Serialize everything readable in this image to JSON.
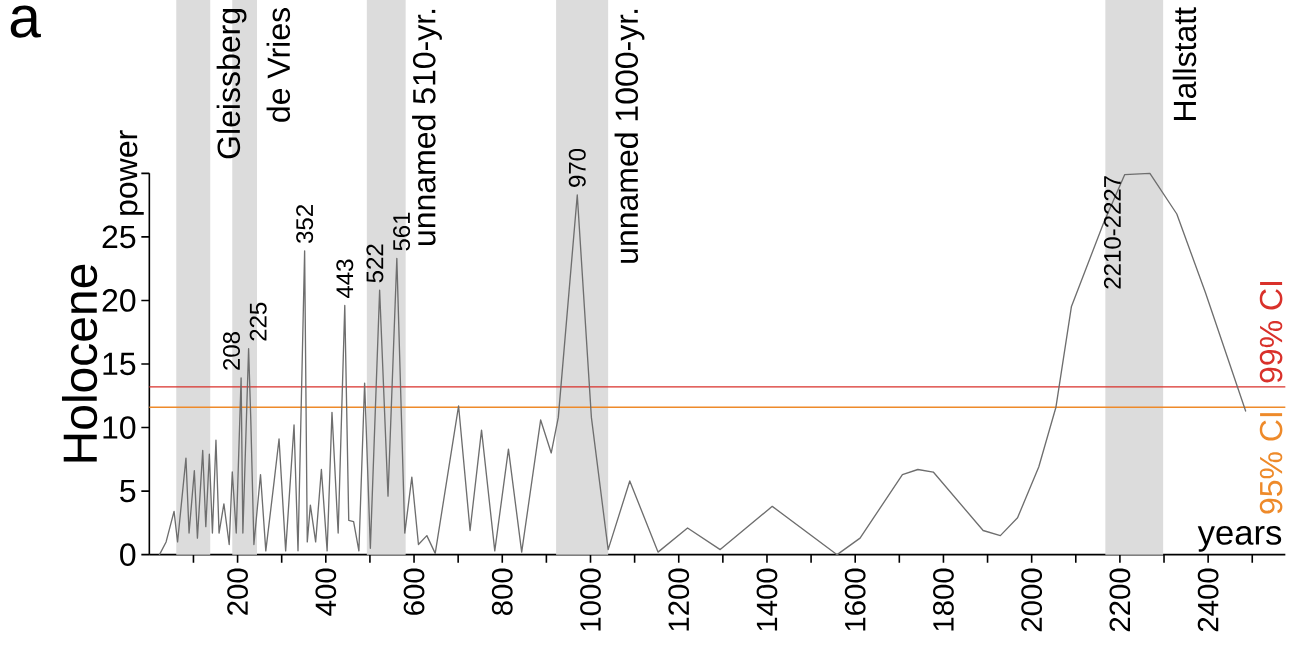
{
  "chart_data": {
    "type": "line",
    "ylabel": "Holocene",
    "xlabel": "years",
    "x": [
      23,
      38,
      56,
      64,
      83,
      90,
      102,
      109,
      121,
      128,
      136,
      143,
      151,
      158,
      169,
      181,
      188,
      197,
      208,
      212,
      225,
      230,
      237,
      252,
      264,
      283,
      294,
      309,
      328,
      337,
      352,
      358,
      365,
      377,
      390,
      403,
      414,
      428,
      443,
      452,
      463,
      475,
      488,
      501,
      522,
      541,
      561,
      579,
      595,
      610,
      629,
      648,
      701,
      727,
      753,
      783,
      814,
      844,
      887,
      911,
      927,
      970,
      1002,
      1040,
      1089,
      1153,
      1220,
      1294,
      1412,
      1559,
      1611,
      1707,
      1742,
      1777,
      1890,
      1929,
      1968,
      2016,
      2055,
      2090,
      2163,
      2211,
      2268,
      2329,
      2394,
      2485
    ],
    "series": [
      {
        "color": "#6e6e6e",
        "values": [
          0,
          1.0,
          3.4,
          1.0,
          7.6,
          1.7,
          6.6,
          1.3,
          8.2,
          2.2,
          7.9,
          1.7,
          9.0,
          1.7,
          4.0,
          0.8,
          6.5,
          1.7,
          13.9,
          1.7,
          16.2,
          10.6,
          0.8,
          6.3,
          0.3,
          5.8,
          9.1,
          0.3,
          10.2,
          0.3,
          23.9,
          1.0,
          3.9,
          1.0,
          6.7,
          0.3,
          11.2,
          1.7,
          19.6,
          2.7,
          2.6,
          0.3,
          13.5,
          0.5,
          20.8,
          4.6,
          23.3,
          1.7,
          6.1,
          0.8,
          1.5,
          0.1,
          11.7,
          1.9,
          9.8,
          0.3,
          8.3,
          0.2,
          10.6,
          8.0,
          10.8,
          28.3,
          10.8,
          0.4,
          5.8,
          0.2,
          2.1,
          0.4,
          3.8,
          0.0,
          1.3,
          6.3,
          6.7,
          6.5,
          1.9,
          1.5,
          2.9,
          6.9,
          11.6,
          19.5,
          26.1,
          29.9,
          30.0,
          26.8,
          20.6,
          11.3
        ]
      }
    ],
    "xlim": [
      0,
      2575
    ],
    "ylim": [
      0,
      30
    ],
    "xticks": [
      {
        "value": 100,
        "label": null
      },
      200,
      {
        "value": 300,
        "label": null
      },
      400,
      {
        "value": 500,
        "label": null
      },
      600,
      {
        "value": 700,
        "label": null
      },
      800,
      {
        "value": 900,
        "label": null
      },
      1000,
      {
        "value": 1100,
        "label": null
      },
      1200,
      {
        "value": 1300,
        "label": null
      },
      1400,
      {
        "value": 1500,
        "label": null
      },
      1600,
      {
        "value": 1700,
        "label": null
      },
      1800,
      {
        "value": 1900,
        "label": null
      },
      2000,
      {
        "value": 2100,
        "label": null
      },
      2200,
      {
        "value": 2300,
        "label": null
      },
      2400,
      {
        "value": 2500,
        "label": null
      }
    ],
    "yticks": [
      0,
      5,
      10,
      15,
      20,
      25,
      {
        "value": 30,
        "label": null
      }
    ],
    "ref_lines": [
      {
        "axis": "y",
        "value": 13.2,
        "label": "99% CI",
        "color": "#d9312b"
      },
      {
        "axis": "y",
        "value": 11.6,
        "label": "95% CI",
        "color": "#ee8a2a"
      }
    ],
    "bands": [
      {
        "axis": "x",
        "from": 61,
        "to": 138,
        "label": "Gleissberg",
        "color": "#dcdcdc"
      },
      {
        "axis": "x",
        "from": 188,
        "to": 244,
        "label": "de Vries",
        "color": "#dcdcdc"
      },
      {
        "axis": "x",
        "from": 493,
        "to": 581,
        "label": "unnamed 510-yr.",
        "color": "#dcdcdc"
      },
      {
        "axis": "x",
        "from": 922,
        "to": 1040,
        "label": "unnamed 1000-yr.",
        "color": "#dcdcdc"
      },
      {
        "axis": "x",
        "from": 2167,
        "to": 2298,
        "label": "Hallstatt",
        "color": "#dcdcdc"
      }
    ],
    "annotations": [
      "a",
      "power",
      {
        "text": "208",
        "x": 208,
        "y": 13.9
      },
      {
        "text": "225",
        "x": 225,
        "y": 16.2
      },
      {
        "text": "352",
        "x": 352,
        "y": 23.9
      },
      {
        "text": "443",
        "x": 443,
        "y": 19.6
      },
      {
        "text": "522",
        "x": 522,
        "y": 20.8
      },
      {
        "text": "561",
        "x": 561,
        "y": 23.3
      },
      {
        "text": "970",
        "x": 970,
        "y": 28.3
      },
      {
        "text": "2210-2227",
        "x": 2218,
        "y": 30.0
      }
    ],
    "grid": false,
    "marker": "none",
    "line_style": "solid"
  }
}
